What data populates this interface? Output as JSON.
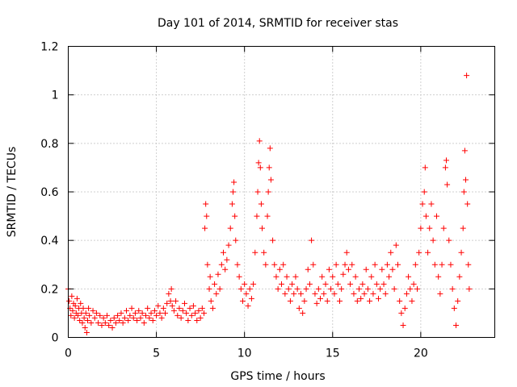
{
  "chart_data": {
    "type": "scatter",
    "title": "Day 101 of 2014, SRMTID for receiver stas",
    "xlabel": "GPS time / hours",
    "ylabel": "SRMTID / TECUs",
    "xlim": [
      0,
      24.2
    ],
    "ylim": [
      0,
      1.2
    ],
    "xticks": [
      0,
      5,
      10,
      15,
      20
    ],
    "xtick_labels": [
      "0",
      "5",
      "10",
      "15",
      "20"
    ],
    "yticks": [
      0,
      0.2,
      0.4,
      0.6,
      0.8,
      1.0,
      1.2
    ],
    "ytick_labels": [
      "0",
      "0.2",
      "0.4",
      "0.6",
      "0.8",
      "1",
      "1.2"
    ],
    "grid": true,
    "legend": "none",
    "marker": "+",
    "color": "#ff0000",
    "series": [
      {
        "name": "stas",
        "points": [
          [
            0.0,
            0.2
          ],
          [
            0.05,
            0.15
          ],
          [
            0.1,
            0.12
          ],
          [
            0.15,
            0.09
          ],
          [
            0.2,
            0.17
          ],
          [
            0.25,
            0.11
          ],
          [
            0.3,
            0.14
          ],
          [
            0.35,
            0.08
          ],
          [
            0.4,
            0.13
          ],
          [
            0.45,
            0.1
          ],
          [
            0.5,
            0.16
          ],
          [
            0.55,
            0.09
          ],
          [
            0.6,
            0.12
          ],
          [
            0.65,
            0.07
          ],
          [
            0.7,
            0.14
          ],
          [
            0.75,
            0.1
          ],
          [
            0.8,
            0.06
          ],
          [
            0.85,
            0.12
          ],
          [
            0.9,
            0.08
          ],
          [
            0.95,
            0.04
          ],
          [
            1.0,
            0.1
          ],
          [
            1.05,
            0.02
          ],
          [
            1.1,
            0.07
          ],
          [
            1.15,
            0.12
          ],
          [
            1.2,
            0.09
          ],
          [
            1.3,
            0.06
          ],
          [
            1.4,
            0.11
          ],
          [
            1.5,
            0.08
          ],
          [
            1.6,
            0.1
          ],
          [
            1.7,
            0.06
          ],
          [
            1.8,
            0.09
          ],
          [
            1.9,
            0.05
          ],
          [
            2.0,
            0.08
          ],
          [
            2.1,
            0.06
          ],
          [
            2.2,
            0.09
          ],
          [
            2.3,
            0.05
          ],
          [
            2.4,
            0.07
          ],
          [
            2.5,
            0.04
          ],
          [
            2.6,
            0.08
          ],
          [
            2.7,
            0.06
          ],
          [
            2.8,
            0.09
          ],
          [
            2.9,
            0.07
          ],
          [
            3.0,
            0.1
          ],
          [
            3.1,
            0.06
          ],
          [
            3.2,
            0.08
          ],
          [
            3.3,
            0.11
          ],
          [
            3.4,
            0.07
          ],
          [
            3.5,
            0.09
          ],
          [
            3.6,
            0.12
          ],
          [
            3.7,
            0.08
          ],
          [
            3.8,
            0.1
          ],
          [
            3.9,
            0.07
          ],
          [
            4.0,
            0.11
          ],
          [
            4.1,
            0.08
          ],
          [
            4.2,
            0.1
          ],
          [
            4.3,
            0.06
          ],
          [
            4.4,
            0.09
          ],
          [
            4.5,
            0.12
          ],
          [
            4.6,
            0.08
          ],
          [
            4.7,
            0.1
          ],
          [
            4.8,
            0.07
          ],
          [
            4.9,
            0.11
          ],
          [
            5.0,
            0.09
          ],
          [
            5.1,
            0.13
          ],
          [
            5.2,
            0.1
          ],
          [
            5.3,
            0.08
          ],
          [
            5.4,
            0.12
          ],
          [
            5.5,
            0.1
          ],
          [
            5.6,
            0.14
          ],
          [
            5.7,
            0.18
          ],
          [
            5.8,
            0.15
          ],
          [
            5.85,
            0.2
          ],
          [
            5.9,
            0.13
          ],
          [
            6.0,
            0.11
          ],
          [
            6.1,
            0.15
          ],
          [
            6.2,
            0.09
          ],
          [
            6.3,
            0.12
          ],
          [
            6.4,
            0.08
          ],
          [
            6.5,
            0.11
          ],
          [
            6.6,
            0.14
          ],
          [
            6.7,
            0.1
          ],
          [
            6.8,
            0.07
          ],
          [
            6.9,
            0.12
          ],
          [
            7.0,
            0.09
          ],
          [
            7.1,
            0.13
          ],
          [
            7.2,
            0.1
          ],
          [
            7.3,
            0.07
          ],
          [
            7.4,
            0.11
          ],
          [
            7.5,
            0.08
          ],
          [
            7.6,
            0.12
          ],
          [
            7.7,
            0.1
          ],
          [
            7.75,
            0.45
          ],
          [
            7.8,
            0.55
          ],
          [
            7.85,
            0.5
          ],
          [
            7.9,
            0.3
          ],
          [
            8.0,
            0.2
          ],
          [
            8.05,
            0.25
          ],
          [
            8.1,
            0.15
          ],
          [
            8.2,
            0.12
          ],
          [
            8.3,
            0.22
          ],
          [
            8.4,
            0.18
          ],
          [
            8.5,
            0.26
          ],
          [
            8.6,
            0.2
          ],
          [
            8.7,
            0.3
          ],
          [
            8.8,
            0.35
          ],
          [
            8.9,
            0.28
          ],
          [
            9.0,
            0.32
          ],
          [
            9.1,
            0.38
          ],
          [
            9.2,
            0.45
          ],
          [
            9.3,
            0.55
          ],
          [
            9.35,
            0.6
          ],
          [
            9.4,
            0.64
          ],
          [
            9.45,
            0.5
          ],
          [
            9.5,
            0.4
          ],
          [
            9.6,
            0.3
          ],
          [
            9.7,
            0.25
          ],
          [
            9.8,
            0.2
          ],
          [
            9.9,
            0.15
          ],
          [
            10.0,
            0.22
          ],
          [
            10.1,
            0.18
          ],
          [
            10.2,
            0.13
          ],
          [
            10.3,
            0.2
          ],
          [
            10.4,
            0.16
          ],
          [
            10.5,
            0.22
          ],
          [
            10.6,
            0.35
          ],
          [
            10.7,
            0.5
          ],
          [
            10.75,
            0.6
          ],
          [
            10.8,
            0.72
          ],
          [
            10.85,
            0.81
          ],
          [
            10.9,
            0.7
          ],
          [
            10.95,
            0.55
          ],
          [
            11.0,
            0.45
          ],
          [
            11.1,
            0.35
          ],
          [
            11.2,
            0.3
          ],
          [
            11.3,
            0.5
          ],
          [
            11.35,
            0.6
          ],
          [
            11.4,
            0.7
          ],
          [
            11.45,
            0.78
          ],
          [
            11.5,
            0.65
          ],
          [
            11.6,
            0.4
          ],
          [
            11.7,
            0.3
          ],
          [
            11.8,
            0.25
          ],
          [
            11.9,
            0.2
          ],
          [
            12.0,
            0.28
          ],
          [
            12.1,
            0.22
          ],
          [
            12.2,
            0.3
          ],
          [
            12.3,
            0.18
          ],
          [
            12.4,
            0.25
          ],
          [
            12.5,
            0.2
          ],
          [
            12.6,
            0.15
          ],
          [
            12.7,
            0.22
          ],
          [
            12.8,
            0.18
          ],
          [
            12.9,
            0.25
          ],
          [
            13.0,
            0.2
          ],
          [
            13.1,
            0.12
          ],
          [
            13.2,
            0.18
          ],
          [
            13.3,
            0.1
          ],
          [
            13.4,
            0.15
          ],
          [
            13.5,
            0.2
          ],
          [
            13.6,
            0.28
          ],
          [
            13.7,
            0.22
          ],
          [
            13.8,
            0.4
          ],
          [
            13.9,
            0.3
          ],
          [
            14.0,
            0.18
          ],
          [
            14.1,
            0.14
          ],
          [
            14.2,
            0.2
          ],
          [
            14.3,
            0.16
          ],
          [
            14.4,
            0.25
          ],
          [
            14.5,
            0.18
          ],
          [
            14.6,
            0.22
          ],
          [
            14.7,
            0.15
          ],
          [
            14.8,
            0.28
          ],
          [
            14.9,
            0.2
          ],
          [
            15.0,
            0.25
          ],
          [
            15.1,
            0.18
          ],
          [
            15.2,
            0.3
          ],
          [
            15.3,
            0.22
          ],
          [
            15.4,
            0.15
          ],
          [
            15.5,
            0.2
          ],
          [
            15.6,
            0.26
          ],
          [
            15.7,
            0.3
          ],
          [
            15.8,
            0.35
          ],
          [
            15.9,
            0.28
          ],
          [
            16.0,
            0.22
          ],
          [
            16.1,
            0.3
          ],
          [
            16.2,
            0.18
          ],
          [
            16.3,
            0.25
          ],
          [
            16.4,
            0.15
          ],
          [
            16.5,
            0.2
          ],
          [
            16.6,
            0.16
          ],
          [
            16.7,
            0.22
          ],
          [
            16.8,
            0.18
          ],
          [
            16.9,
            0.28
          ],
          [
            17.0,
            0.2
          ],
          [
            17.1,
            0.15
          ],
          [
            17.2,
            0.25
          ],
          [
            17.3,
            0.18
          ],
          [
            17.4,
            0.3
          ],
          [
            17.5,
            0.22
          ],
          [
            17.6,
            0.16
          ],
          [
            17.7,
            0.2
          ],
          [
            17.8,
            0.28
          ],
          [
            17.9,
            0.22
          ],
          [
            18.0,
            0.18
          ],
          [
            18.1,
            0.3
          ],
          [
            18.2,
            0.25
          ],
          [
            18.3,
            0.35
          ],
          [
            18.4,
            0.28
          ],
          [
            18.5,
            0.2
          ],
          [
            18.6,
            0.38
          ],
          [
            18.7,
            0.3
          ],
          [
            18.8,
            0.15
          ],
          [
            18.9,
            0.1
          ],
          [
            19.0,
            0.05
          ],
          [
            19.1,
            0.12
          ],
          [
            19.2,
            0.18
          ],
          [
            19.3,
            0.25
          ],
          [
            19.4,
            0.2
          ],
          [
            19.5,
            0.15
          ],
          [
            19.6,
            0.22
          ],
          [
            19.7,
            0.3
          ],
          [
            19.8,
            0.2
          ],
          [
            19.9,
            0.35
          ],
          [
            20.0,
            0.45
          ],
          [
            20.1,
            0.55
          ],
          [
            20.2,
            0.6
          ],
          [
            20.25,
            0.7
          ],
          [
            20.3,
            0.5
          ],
          [
            20.4,
            0.35
          ],
          [
            20.5,
            0.45
          ],
          [
            20.6,
            0.55
          ],
          [
            20.7,
            0.4
          ],
          [
            20.8,
            0.3
          ],
          [
            20.9,
            0.5
          ],
          [
            21.0,
            0.25
          ],
          [
            21.1,
            0.18
          ],
          [
            21.2,
            0.3
          ],
          [
            21.3,
            0.45
          ],
          [
            21.4,
            0.7
          ],
          [
            21.45,
            0.73
          ],
          [
            21.5,
            0.63
          ],
          [
            21.6,
            0.4
          ],
          [
            21.7,
            0.3
          ],
          [
            21.8,
            0.2
          ],
          [
            21.9,
            0.12
          ],
          [
            22.0,
            0.05
          ],
          [
            22.1,
            0.15
          ],
          [
            22.2,
            0.25
          ],
          [
            22.3,
            0.35
          ],
          [
            22.4,
            0.45
          ],
          [
            22.45,
            0.6
          ],
          [
            22.5,
            0.77
          ],
          [
            22.55,
            0.65
          ],
          [
            22.6,
            1.08
          ],
          [
            22.65,
            0.55
          ],
          [
            22.7,
            0.3
          ],
          [
            22.75,
            0.2
          ]
        ]
      }
    ]
  }
}
